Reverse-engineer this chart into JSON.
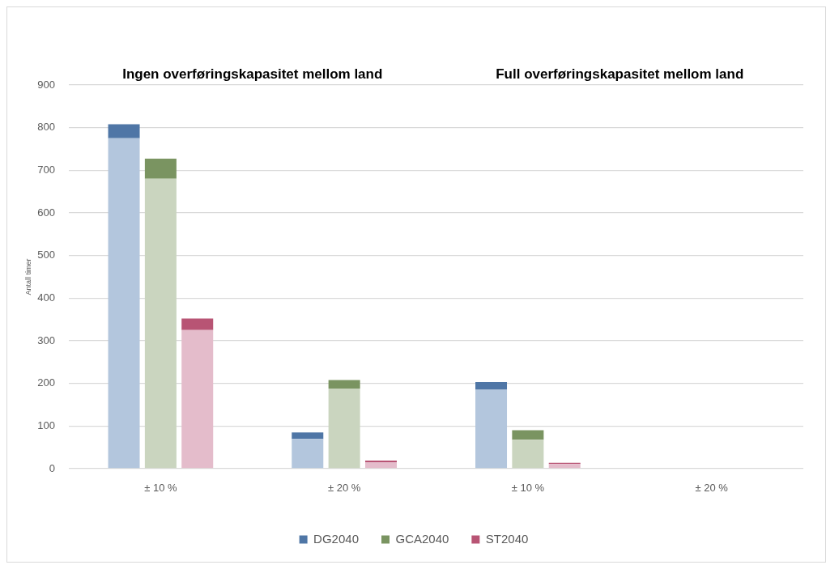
{
  "chart_data": {
    "type": "bar",
    "annotations": [
      "Ingen overføringskapasitet mellom land",
      "Full overføringskapasitet mellom land"
    ],
    "ylabel": "Antall timer",
    "categories": [
      null,
      null,
      "± 10 %",
      null,
      null,
      null,
      null,
      "± 20 %",
      null,
      null,
      null,
      null,
      "± 10 %",
      null,
      null,
      null,
      null,
      "± 20 %",
      null,
      null
    ],
    "stacked": true,
    "series": [
      {
        "color": "#b3c6dd",
        "values": [
          null,
          775,
          null,
          null,
          null,
          null,
          70,
          null,
          null,
          null,
          null,
          185,
          null,
          null,
          null,
          null,
          0,
          null,
          null,
          null
        ]
      },
      {
        "name": "DG2040",
        "color": "#4f76a6",
        "values": [
          null,
          33,
          null,
          null,
          null,
          null,
          15,
          null,
          null,
          null,
          null,
          18,
          null,
          null,
          null,
          null,
          0,
          null,
          null,
          null
        ]
      },
      {
        "color": "#cad5bf",
        "values": [
          null,
          null,
          680,
          null,
          null,
          null,
          null,
          188,
          null,
          null,
          null,
          null,
          68,
          null,
          null,
          null,
          null,
          0,
          null,
          null
        ]
      },
      {
        "name": "GCA2040",
        "color": "#7a9461",
        "values": [
          null,
          null,
          47,
          null,
          null,
          null,
          null,
          20,
          null,
          null,
          null,
          null,
          22,
          null,
          null,
          null,
          null,
          0,
          null,
          null
        ]
      },
      {
        "color": "#e4bccb",
        "values": [
          null,
          null,
          null,
          325,
          null,
          null,
          null,
          null,
          15,
          null,
          null,
          null,
          null,
          11,
          null,
          null,
          null,
          null,
          0,
          null
        ]
      },
      {
        "name": "ST2040",
        "color": "#b85474",
        "values": [
          null,
          null,
          null,
          27,
          null,
          null,
          null,
          null,
          4,
          null,
          null,
          null,
          null,
          3,
          null,
          null,
          null,
          null,
          0,
          null
        ]
      }
    ],
    "ylim": [
      0,
      900
    ],
    "yticks": [
      0,
      100,
      200,
      300,
      400,
      500,
      600,
      700,
      800,
      900
    ],
    "grid": "y",
    "legend": "bottom"
  }
}
